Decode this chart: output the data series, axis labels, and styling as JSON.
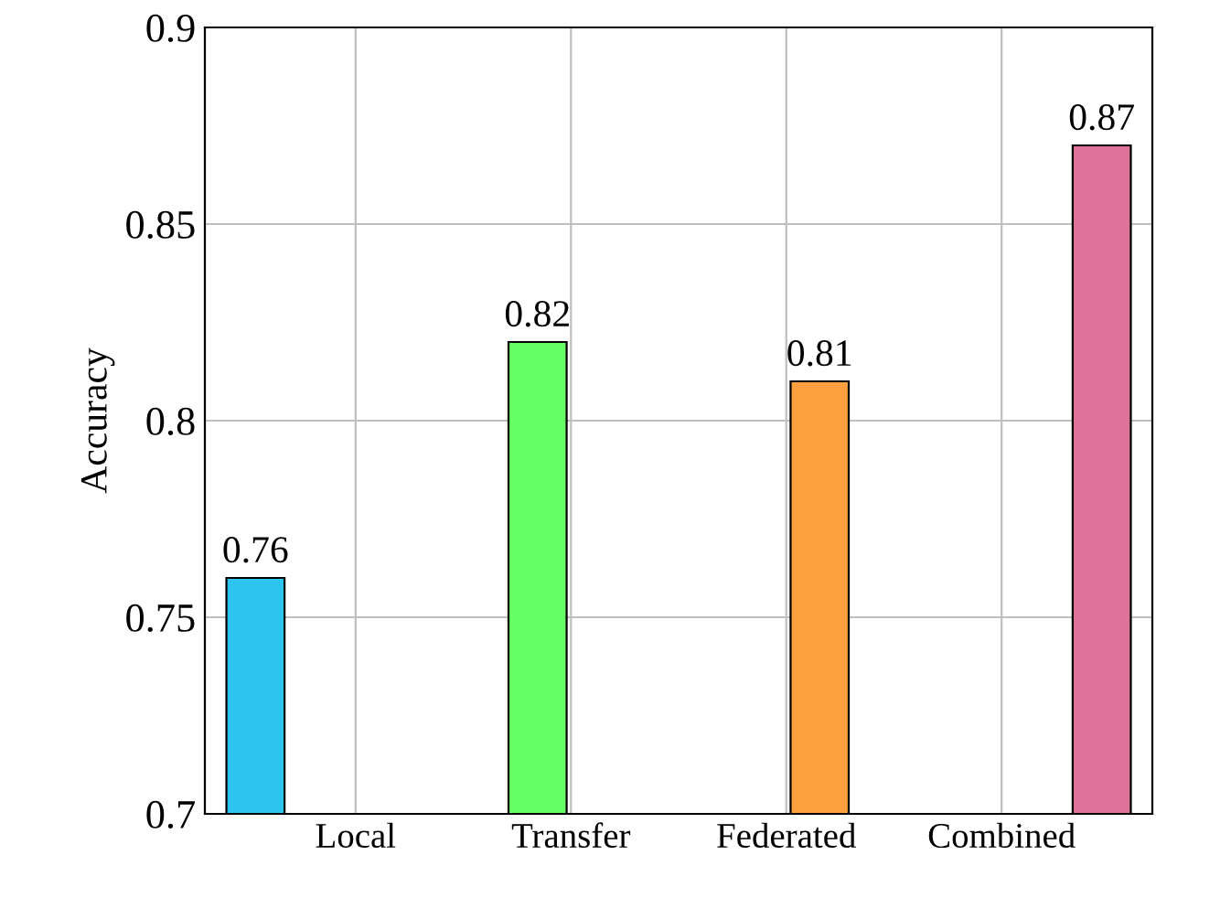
{
  "chart_data": {
    "type": "bar",
    "ylabel": "Accuracy",
    "categories": [
      "Local",
      "Transfer",
      "Federated",
      "Combined"
    ],
    "series": [
      {
        "color": "#2ec4f0",
        "values": [
          0.76,
          null,
          null,
          null
        ]
      },
      {
        "color": "#66ff66",
        "values": [
          null,
          0.82,
          null,
          null
        ]
      },
      {
        "color": "#ffa040",
        "values": [
          null,
          null,
          0.81,
          null
        ]
      },
      {
        "color": "#dd7399",
        "values": [
          null,
          null,
          null,
          0.87
        ]
      }
    ],
    "ylim": [
      0.7,
      0.9
    ],
    "yticks": [
      0.7,
      0.75,
      0.8,
      0.85,
      0.9
    ],
    "grid": true,
    "data_labels": true,
    "legend": false
  }
}
